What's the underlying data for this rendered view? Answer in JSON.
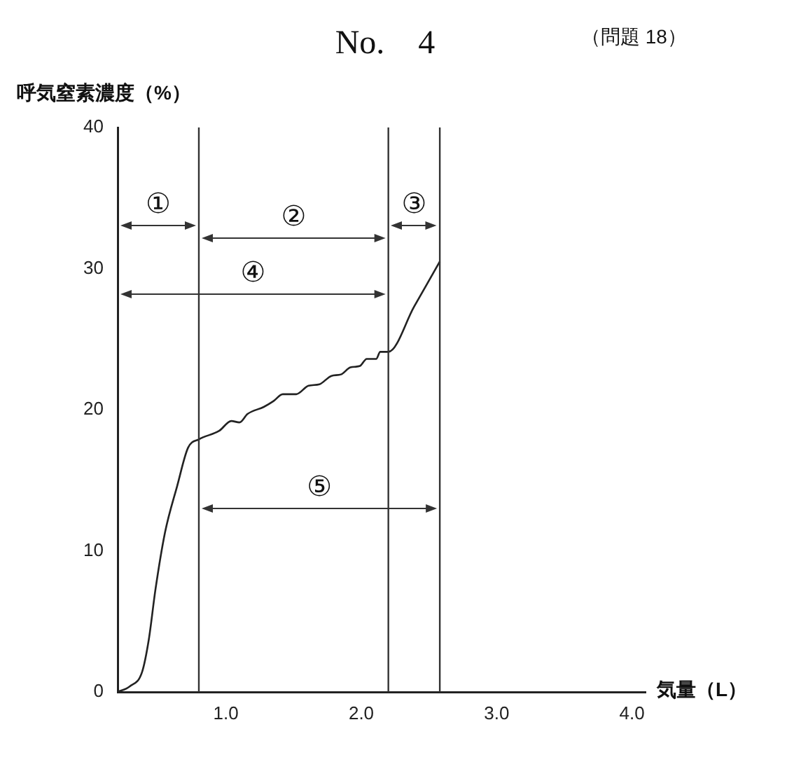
{
  "chart_data": {
    "type": "line",
    "title": "No.　4",
    "subtitle": "（問題 18）",
    "xlabel": "気量（L）",
    "ylabel": "呼気窒素濃度（%）",
    "series": [
      {
        "color": "#222222",
        "x": [
          0.2,
          0.29,
          0.38,
          0.43,
          0.48,
          0.55,
          0.64,
          0.72,
          0.8,
          0.95,
          1.04,
          1.1,
          1.16,
          1.28,
          1.35,
          1.42,
          1.52,
          1.61,
          1.69,
          1.78,
          1.85,
          1.92,
          1.99,
          2.04,
          2.11,
          2.14,
          2.2,
          2.39,
          2.58
        ],
        "values": [
          0,
          0.4,
          1.4,
          3.7,
          7.3,
          11.3,
          14.6,
          17.3,
          17.9,
          18.5,
          19.2,
          19.1,
          19.7,
          20.2,
          20.6,
          21.1,
          21.1,
          21.7,
          21.8,
          22.4,
          22.5,
          23.0,
          23.1,
          23.6,
          23.6,
          24.1,
          24.1,
          27.3,
          30.5
        ]
      }
    ],
    "xlim": [
      0.2,
      4.1
    ],
    "xticks": [
      {
        "value": 1,
        "label": "1.0"
      },
      {
        "value": 2,
        "label": "2.0"
      },
      {
        "value": 3,
        "label": "3.0"
      },
      {
        "value": 4,
        "label": "4.0"
      }
    ],
    "ylim": [
      0,
      40
    ],
    "yticks": [
      0,
      10,
      20,
      30,
      40
    ],
    "ref_lines": [
      {
        "axis": "x",
        "value": 0.8,
        "color": "#333333"
      },
      {
        "axis": "x",
        "value": 2.2,
        "color": "#333333"
      },
      {
        "axis": "x",
        "value": 2.58,
        "color": "#333333"
      }
    ],
    "annotations": [
      "①",
      "②",
      "③",
      "④",
      "⑤"
    ],
    "grid": false,
    "legend": false,
    "marker": "none",
    "line_style": "solid"
  }
}
